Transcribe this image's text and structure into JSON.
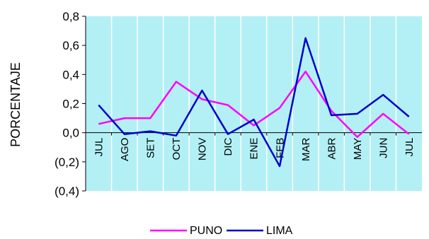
{
  "chart_data": {
    "type": "line",
    "title": "",
    "xlabel": "",
    "ylabel": "PORCENTAJE",
    "categories": [
      "JUL",
      "AGO",
      "SET",
      "OCT",
      "NOV",
      "DIC",
      "ENE",
      "FEB",
      "MAR",
      "ABR",
      "MAY",
      "JUN",
      "JUL"
    ],
    "ylim": [
      -0.4,
      0.8
    ],
    "yticks": [
      {
        "value": 0.8,
        "label": "0,8"
      },
      {
        "value": 0.6,
        "label": "0,6"
      },
      {
        "value": 0.4,
        "label": "0,4"
      },
      {
        "value": 0.2,
        "label": "0,2"
      },
      {
        "value": 0.0,
        "label": "0,0"
      },
      {
        "value": -0.2,
        "label": "(0,2)"
      },
      {
        "value": -0.4,
        "label": "(0,4)"
      }
    ],
    "plot_background": "#b3f0f5",
    "grid_color": "#ffffff",
    "legend_position": "bottom",
    "series": [
      {
        "name": "PUNO",
        "color": "#ff00ff",
        "values": [
          0.06,
          0.1,
          0.1,
          0.35,
          0.23,
          0.19,
          0.05,
          0.17,
          0.42,
          0.15,
          -0.03,
          0.13,
          -0.01
        ]
      },
      {
        "name": "LIMA",
        "color": "#0000cc",
        "values": [
          0.19,
          -0.01,
          0.01,
          -0.02,
          0.29,
          -0.01,
          0.09,
          -0.23,
          0.65,
          0.12,
          0.13,
          0.26,
          0.11
        ]
      }
    ]
  }
}
